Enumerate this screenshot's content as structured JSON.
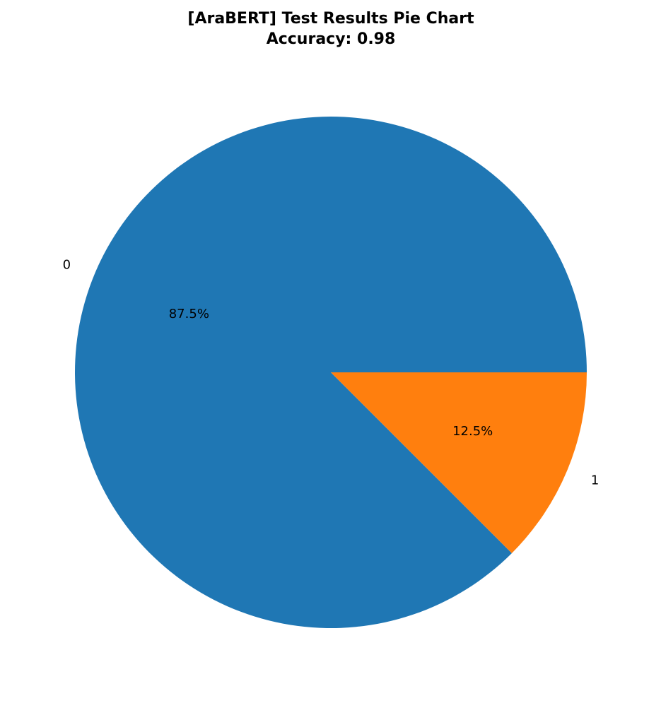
{
  "chart_data": {
    "type": "pie",
    "title": "[AraBERT] Test Results Pie Chart",
    "subtitle": "Accuracy: 0.98",
    "slices": [
      {
        "label": "0",
        "value": 87.5,
        "pct_label": "87.5%",
        "color": "#1f77b4"
      },
      {
        "label": "1",
        "value": 12.5,
        "pct_label": "12.5%",
        "color": "#ff7f0e"
      }
    ]
  }
}
